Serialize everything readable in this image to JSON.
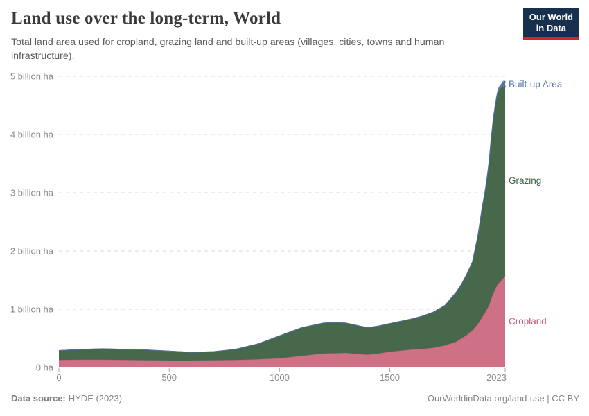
{
  "header": {
    "title": "Land use over the long-term, World",
    "subtitle": "Total land area used for cropland, grazing land and built-up areas (villages, cities, towns and human infrastructure)."
  },
  "logo": {
    "line1": "Our World",
    "line2": "in Data",
    "bg_color": "#16304e",
    "accent_color": "#c82a25"
  },
  "footer": {
    "source_label": "Data source:",
    "source_value": "HYDE (2023)",
    "right": "OurWorldinData.org/land-use | CC BY"
  },
  "chart_data": {
    "type": "area",
    "stacked": true,
    "title": "Land use over the long-term, World",
    "unit": "billion ha",
    "xlabel": "Year",
    "ylabel": "Land area",
    "xlim": [
      0,
      2023
    ],
    "ylim": [
      0,
      5.15
    ],
    "grid": "horizontal dashed",
    "legend": "labels at right edge of areas",
    "x": [
      0,
      100,
      200,
      300,
      400,
      500,
      600,
      700,
      800,
      900,
      1000,
      1100,
      1200,
      1250,
      1300,
      1400,
      1450,
      1500,
      1550,
      1600,
      1650,
      1700,
      1750,
      1800,
      1825,
      1850,
      1875,
      1900,
      1910,
      1920,
      1930,
      1940,
      1950,
      1960,
      1970,
      1975,
      1980,
      1985,
      1990,
      1995,
      2000,
      2005,
      2010,
      2013,
      2016,
      2018,
      2020,
      2022,
      2023
    ],
    "series": [
      {
        "name": "Cropland",
        "fill": "#ce7186",
        "stroke": "#c25f7c",
        "label_color": "#c05a7b",
        "values": [
          0.13,
          0.135,
          0.135,
          0.13,
          0.125,
          0.12,
          0.12,
          0.125,
          0.13,
          0.14,
          0.16,
          0.2,
          0.24,
          0.245,
          0.25,
          0.22,
          0.24,
          0.27,
          0.29,
          0.31,
          0.32,
          0.34,
          0.38,
          0.44,
          0.5,
          0.56,
          0.64,
          0.75,
          0.81,
          0.87,
          0.93,
          1.0,
          1.07,
          1.18,
          1.28,
          1.32,
          1.36,
          1.4,
          1.44,
          1.45,
          1.47,
          1.49,
          1.51,
          1.52,
          1.54,
          1.55,
          1.56,
          1.57,
          1.58
        ]
      },
      {
        "name": "Grazing",
        "fill": "#47684a",
        "stroke": "#3c5f41",
        "label_color": "#3b6342",
        "values": [
          0.16,
          0.175,
          0.185,
          0.18,
          0.175,
          0.16,
          0.14,
          0.145,
          0.18,
          0.26,
          0.38,
          0.48,
          0.52,
          0.525,
          0.51,
          0.46,
          0.47,
          0.48,
          0.5,
          0.52,
          0.56,
          0.61,
          0.68,
          0.84,
          0.92,
          1.04,
          1.16,
          1.5,
          1.69,
          1.88,
          2.02,
          2.2,
          2.43,
          2.72,
          2.97,
          3.06,
          3.14,
          3.21,
          3.26,
          3.3,
          3.31,
          3.31,
          3.31,
          3.32,
          3.24,
          3.31,
          3.24,
          3.28,
          3.23
        ]
      },
      {
        "name": "Built-up Area",
        "fill": "#5e7cb2",
        "stroke": "#51709f",
        "label_color": "#5678ab",
        "values": [
          0.001,
          0.001,
          0.001,
          0.001,
          0.001,
          0.001,
          0.001,
          0.002,
          0.002,
          0.002,
          0.002,
          0.003,
          0.003,
          0.003,
          0.003,
          0.003,
          0.003,
          0.004,
          0.004,
          0.004,
          0.005,
          0.005,
          0.006,
          0.008,
          0.009,
          0.01,
          0.015,
          0.02,
          0.022,
          0.025,
          0.027,
          0.03,
          0.033,
          0.037,
          0.042,
          0.044,
          0.047,
          0.05,
          0.053,
          0.056,
          0.058,
          0.06,
          0.062,
          0.063,
          0.065,
          0.067,
          0.068,
          0.07,
          0.07
        ]
      }
    ],
    "yticks": [
      {
        "value": 0,
        "label": "0 ha"
      },
      {
        "value": 1,
        "label": "1 billion ha"
      },
      {
        "value": 2,
        "label": "2 billion ha"
      },
      {
        "value": 3,
        "label": "3 billion ha"
      },
      {
        "value": 4,
        "label": "4 billion ha"
      },
      {
        "value": 5,
        "label": "5 billion ha"
      }
    ],
    "xticks": [
      {
        "value": 0,
        "label": "0"
      },
      {
        "value": 500,
        "label": "500"
      },
      {
        "value": 1000,
        "label": "1000"
      },
      {
        "value": 1500,
        "label": "1500"
      },
      {
        "value": 2023,
        "label": "2023"
      }
    ],
    "axis_text_color": "#8a8a8a",
    "gridline_color": "#d9d9d9"
  }
}
